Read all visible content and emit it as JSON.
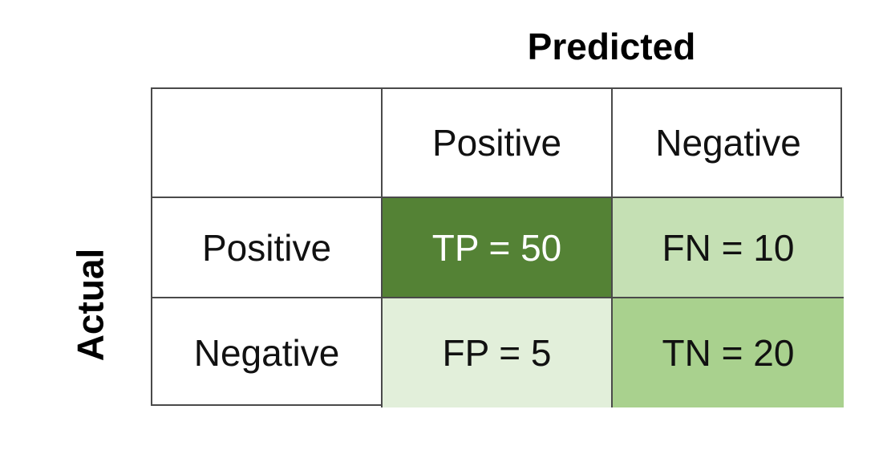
{
  "header": {
    "predicted": "Predicted",
    "actual": "Actual"
  },
  "columns": {
    "positive": "Positive",
    "negative": "Negative"
  },
  "rows": {
    "positive": "Positive",
    "negative": "Negative"
  },
  "cells": {
    "tp": "TP = 50",
    "fn": "FN = 10",
    "fp": "FP = 5",
    "tn": "TN = 20"
  },
  "colors": {
    "tp": "#548235",
    "fn": "#c5e0b4",
    "fp": "#e2efda",
    "tn": "#a9d18e"
  }
}
